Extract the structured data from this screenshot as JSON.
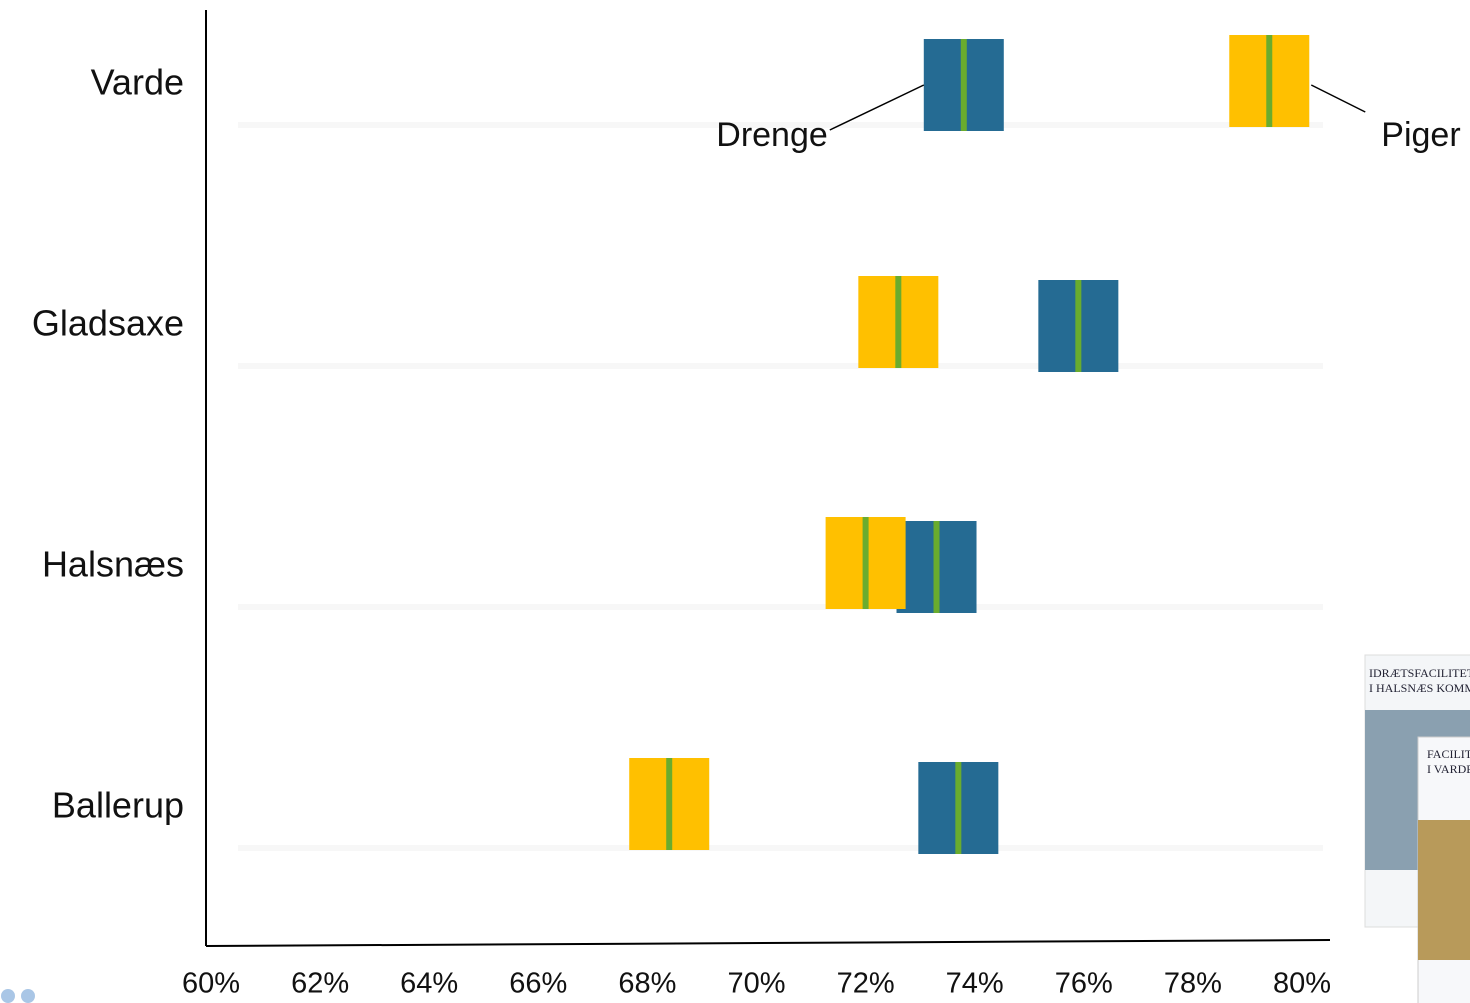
{
  "chart_data": {
    "type": "strip",
    "categories": [
      "Varde",
      "Gladsaxe",
      "Halsnæs",
      "Ballerup"
    ],
    "series": [
      {
        "name": "Drenge",
        "color": "#256b93",
        "values": [
          73.8,
          75.9,
          73.3,
          73.7
        ]
      },
      {
        "name": "Piger",
        "color": "#ffc000",
        "values": [
          79.4,
          72.6,
          72.0,
          68.4
        ]
      }
    ],
    "marker_color": "#6aac2e",
    "xlim": [
      60,
      80
    ],
    "xticks": [
      {
        "value": 60,
        "label": "60%"
      },
      {
        "value": 62,
        "label": "62%"
      },
      {
        "value": 64,
        "label": "64%"
      },
      {
        "value": 66,
        "label": "66%"
      },
      {
        "value": 68,
        "label": "68%"
      },
      {
        "value": 70,
        "label": "70%"
      },
      {
        "value": 72,
        "label": "72%"
      },
      {
        "value": 74,
        "label": "74%"
      },
      {
        "value": 76,
        "label": "76%"
      },
      {
        "value": 78,
        "label": "78%"
      },
      {
        "value": 80,
        "label": "80%"
      }
    ]
  },
  "thumbnails": [
    {
      "title": "IDRÆTSFACILITET",
      "subtitle": "I HALSNÆS KOMM"
    },
    {
      "title": "FACILIT",
      "subtitle": "I VARDE"
    }
  ]
}
